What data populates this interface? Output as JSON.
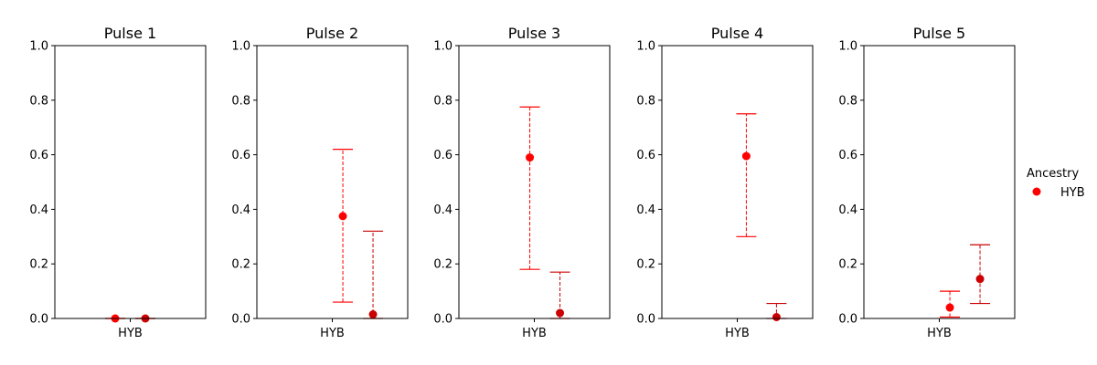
{
  "chart_data": [
    {
      "type": "scatter",
      "title": "Pulse 1",
      "categories": [
        "HYB"
      ],
      "ylim": [
        0,
        1
      ],
      "yticks": [
        "0.0",
        "0.2",
        "0.4",
        "0.6",
        "0.8",
        "1.0"
      ],
      "points": [
        {
          "y": 0.0,
          "low": 0.0,
          "high": 0.0,
          "color": "#ff0000"
        },
        {
          "y": 0.0,
          "low": 0.0,
          "high": 0.0,
          "color": "#cc0000"
        }
      ]
    },
    {
      "type": "scatter",
      "title": "Pulse 2",
      "categories": [
        "HYB"
      ],
      "ylim": [
        0,
        1
      ],
      "yticks": [
        "0.0",
        "0.2",
        "0.4",
        "0.6",
        "0.8",
        "1.0"
      ],
      "points": [
        {
          "y": 0.375,
          "low": 0.06,
          "high": 0.62,
          "color": "#ff0000"
        },
        {
          "y": 0.015,
          "low": 0.0,
          "high": 0.32,
          "color": "#cc0000"
        }
      ]
    },
    {
      "type": "scatter",
      "title": "Pulse 3",
      "categories": [
        "HYB"
      ],
      "ylim": [
        0,
        1
      ],
      "yticks": [
        "0.0",
        "0.2",
        "0.4",
        "0.6",
        "0.8",
        "1.0"
      ],
      "points": [
        {
          "y": 0.59,
          "low": 0.18,
          "high": 0.775,
          "color": "#ff0000"
        },
        {
          "y": 0.02,
          "low": 0.0,
          "high": 0.17,
          "color": "#cc0000"
        }
      ]
    },
    {
      "type": "scatter",
      "title": "Pulse 4",
      "categories": [
        "HYB"
      ],
      "ylim": [
        0,
        1
      ],
      "yticks": [
        "0.0",
        "0.2",
        "0.4",
        "0.6",
        "0.8",
        "1.0"
      ],
      "points": [
        {
          "y": 0.595,
          "low": 0.3,
          "high": 0.75,
          "color": "#ff0000"
        },
        {
          "y": 0.005,
          "low": 0.0,
          "high": 0.055,
          "color": "#cc0000"
        }
      ]
    },
    {
      "type": "scatter",
      "title": "Pulse 5",
      "categories": [
        "HYB"
      ],
      "ylim": [
        0,
        1
      ],
      "yticks": [
        "0.0",
        "0.2",
        "0.4",
        "0.6",
        "0.8",
        "1.0"
      ],
      "points": [
        {
          "y": 0.04,
          "low": 0.005,
          "high": 0.1,
          "color": "#ff0000"
        },
        {
          "y": 0.145,
          "low": 0.055,
          "high": 0.27,
          "color": "#cc0000"
        }
      ]
    }
  ],
  "legend": {
    "title": "Ancestry",
    "items": [
      {
        "label": "HYB",
        "color": "#ff0000"
      }
    ],
    "placement": "right"
  }
}
